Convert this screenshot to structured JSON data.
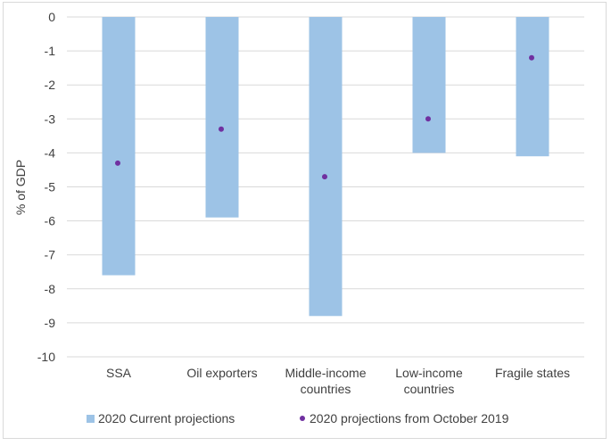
{
  "chart_data": {
    "type": "bar",
    "title": "",
    "xlabel": "",
    "ylabel": "% of GDP",
    "ylim": [
      -10,
      0
    ],
    "yticks": [
      0,
      -1,
      -2,
      -3,
      -4,
      -5,
      -6,
      -7,
      -8,
      -9,
      -10
    ],
    "grid": true,
    "legend_position": "bottom",
    "categories": [
      [
        "SSA"
      ],
      [
        "Oil exporters"
      ],
      [
        "Middle-income",
        "countries"
      ],
      [
        "Low-income",
        "countries"
      ],
      [
        "Fragile states"
      ]
    ],
    "series": [
      {
        "name": "2020 Current projections",
        "type": "bar",
        "color": "#9dc3e6",
        "values": [
          -7.6,
          -5.9,
          -8.8,
          -4.0,
          -4.1
        ]
      },
      {
        "name": "2020 projections from October 2019",
        "type": "scatter",
        "color": "#7030a0",
        "values": [
          -4.3,
          -3.3,
          -4.7,
          -3.0,
          -1.2
        ]
      }
    ]
  }
}
